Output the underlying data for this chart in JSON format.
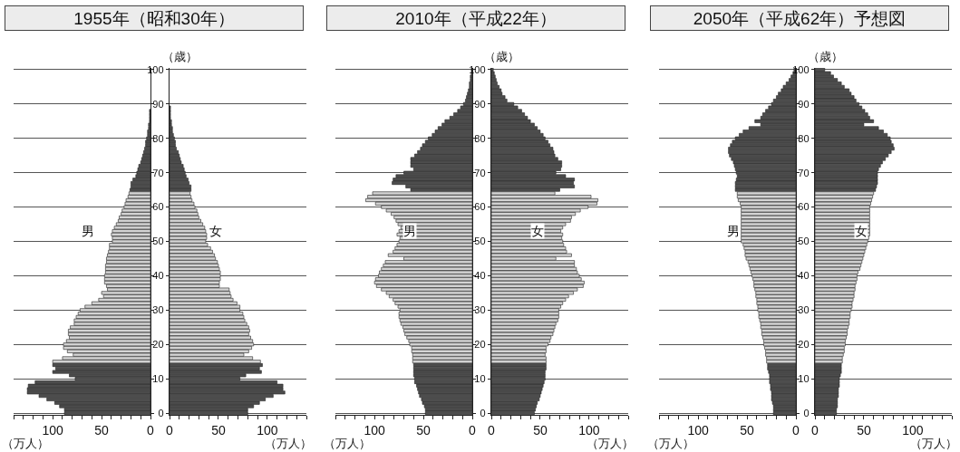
{
  "chart_data": [
    {
      "type": "bar",
      "orientation": "horizontal",
      "title": "1955年（昭和30年）",
      "xlabel": "（万人）",
      "tick_labels": "x",
      "grid": "y",
      "xlim": [
        140,
        0
      ],
      "xticks": [
        {
          "value": 140,
          "label": null
        },
        {
          "value": 130,
          "label": null
        },
        {
          "value": 120,
          "label": null
        },
        {
          "value": 110,
          "label": null
        },
        100,
        {
          "value": 90,
          "label": null
        },
        {
          "value": 80,
          "label": null
        },
        {
          "value": 70,
          "label": null
        },
        {
          "value": 60,
          "label": null
        },
        50,
        {
          "value": 40,
          "label": null
        },
        {
          "value": 30,
          "label": null
        },
        {
          "value": 20,
          "label": null
        },
        {
          "value": 10,
          "label": null
        },
        0
      ],
      "categories": [
        "100",
        null,
        null,
        null,
        null,
        null,
        null,
        null,
        null,
        null,
        "90",
        null,
        null,
        null,
        null,
        null,
        null,
        null,
        null,
        null,
        "80",
        null,
        null,
        null,
        null,
        null,
        null,
        null,
        null,
        null,
        "70",
        null,
        null,
        null,
        null,
        null,
        null,
        null,
        null,
        null,
        "60",
        null,
        null,
        null,
        null,
        null,
        null,
        null,
        null,
        null,
        "50",
        null,
        null,
        null,
        null,
        null,
        null,
        null,
        null,
        null,
        "40",
        null,
        null,
        null,
        null,
        null,
        null,
        null,
        null,
        null,
        "30",
        null,
        null,
        null,
        null,
        null,
        null,
        null,
        null,
        null,
        "20",
        null,
        null,
        null,
        null,
        null,
        null,
        null,
        null,
        null,
        "10",
        null,
        null,
        null,
        null,
        null,
        null,
        null,
        null,
        null,
        "0"
      ],
      "series": [
        {
          "name": "男",
          "values": [
            null,
            null,
            null,
            null,
            null,
            null,
            null,
            null,
            null,
            null,
            null,
            null,
            1,
            1,
            1,
            1,
            2,
            2,
            3,
            3,
            4,
            5,
            5,
            6,
            7,
            8,
            9,
            10,
            12,
            13,
            14,
            15,
            18,
            20,
            20,
            21,
            22,
            23,
            25,
            26,
            27,
            29,
            30,
            32,
            33,
            35,
            37,
            39,
            40,
            39,
            39,
            42,
            42,
            43,
            44,
            45,
            45,
            46,
            46,
            46,
            47,
            47,
            47,
            45,
            44,
            50,
            48,
            53,
            60,
            67,
            72,
            74,
            76,
            78,
            78,
            82,
            84,
            84,
            83,
            86,
            89,
            89,
            85,
            79,
            90,
            100,
            100,
            97,
            100,
            83,
            77,
            118,
            125,
            126,
            126,
            114,
            106,
            98,
            93,
            88,
            88
          ],
          "colors": [
            "#4d4d4d",
            "#4d4d4d",
            "#4d4d4d",
            "#4d4d4d",
            "#4d4d4d",
            "#4d4d4d",
            "#4d4d4d",
            "#4d4d4d",
            "#4d4d4d",
            "#4d4d4d",
            "#4d4d4d",
            "#4d4d4d",
            "#4d4d4d",
            "#4d4d4d",
            "#4d4d4d",
            "#4d4d4d",
            "#4d4d4d",
            "#4d4d4d",
            "#4d4d4d",
            "#4d4d4d",
            "#4d4d4d",
            "#4d4d4d",
            "#4d4d4d",
            "#4d4d4d",
            "#4d4d4d",
            "#4d4d4d",
            "#4d4d4d",
            "#4d4d4d",
            "#4d4d4d",
            "#4d4d4d",
            "#4d4d4d",
            "#4d4d4d",
            "#4d4d4d",
            "#4d4d4d",
            "#4d4d4d",
            "#4d4d4d",
            "#d4d4d4",
            "#d4d4d4",
            "#d4d4d4",
            "#d4d4d4",
            "#d4d4d4",
            "#d4d4d4",
            "#d4d4d4",
            "#d4d4d4",
            "#d4d4d4",
            "#d4d4d4",
            "#d4d4d4",
            "#d4d4d4",
            "#d4d4d4",
            "#d4d4d4",
            "#d4d4d4",
            "#d4d4d4",
            "#d4d4d4",
            "#d4d4d4",
            "#d4d4d4",
            "#d4d4d4",
            "#d4d4d4",
            "#d4d4d4",
            "#d4d4d4",
            "#d4d4d4",
            "#d4d4d4",
            "#d4d4d4",
            "#d4d4d4",
            "#d4d4d4",
            "#d4d4d4",
            "#d4d4d4",
            "#d4d4d4",
            "#d4d4d4",
            "#d4d4d4",
            "#d4d4d4",
            "#d4d4d4",
            "#d4d4d4",
            "#d4d4d4",
            "#d4d4d4",
            "#d4d4d4",
            "#d4d4d4",
            "#d4d4d4",
            "#d4d4d4",
            "#d4d4d4",
            "#d4d4d4",
            "#d4d4d4",
            "#d4d4d4",
            "#d4d4d4",
            "#d4d4d4",
            "#d4d4d4",
            "#d4d4d4",
            "#4d4d4d",
            "#4d4d4d",
            "#4d4d4d",
            "#4d4d4d",
            "#4d4d4d",
            "#4d4d4d",
            "#4d4d4d",
            "#4d4d4d",
            "#4d4d4d",
            "#4d4d4d",
            "#4d4d4d",
            "#4d4d4d",
            "#4d4d4d",
            "#4d4d4d",
            "#4d4d4d"
          ]
        }
      ]
    },
    {
      "type": "bar",
      "orientation": "horizontal",
      "xlabel": "（万人）",
      "ylabel": "（歳）",
      "grid": "y",
      "xlim": [
        0,
        140
      ],
      "xticks": [
        0,
        {
          "value": 10,
          "label": null
        },
        {
          "value": 20,
          "label": null
        },
        {
          "value": 30,
          "label": null
        },
        {
          "value": 40,
          "label": null
        },
        50,
        {
          "value": 60,
          "label": null
        },
        {
          "value": 70,
          "label": null
        },
        {
          "value": 80,
          "label": null
        },
        {
          "value": 90,
          "label": null
        },
        100,
        {
          "value": 110,
          "label": null
        },
        {
          "value": 120,
          "label": null
        },
        {
          "value": 130,
          "label": null
        },
        {
          "value": 140,
          "label": null
        }
      ],
      "categories": [
        "100",
        null,
        null,
        null,
        null,
        null,
        null,
        null,
        null,
        null,
        "90",
        null,
        null,
        null,
        null,
        null,
        null,
        null,
        null,
        null,
        "80",
        null,
        null,
        null,
        null,
        null,
        null,
        null,
        null,
        null,
        "70",
        null,
        null,
        null,
        null,
        null,
        null,
        null,
        null,
        null,
        "60",
        null,
        null,
        null,
        null,
        null,
        null,
        null,
        null,
        null,
        "50",
        null,
        null,
        null,
        null,
        null,
        null,
        null,
        null,
        null,
        "40",
        null,
        null,
        null,
        null,
        null,
        null,
        null,
        null,
        null,
        "30",
        null,
        null,
        null,
        null,
        null,
        null,
        null,
        null,
        null,
        "20",
        null,
        null,
        null,
        null,
        null,
        null,
        null,
        null,
        null,
        "10",
        null,
        null,
        null,
        null,
        null,
        null,
        null,
        null,
        null,
        "0"
      ],
      "series": [
        {
          "name": "女",
          "values": [
            null,
            null,
            null,
            null,
            null,
            null,
            null,
            null,
            null,
            null,
            null,
            1,
            1,
            1,
            1,
            2,
            2,
            3,
            3,
            4,
            5,
            6,
            6,
            7,
            9,
            10,
            11,
            12,
            14,
            15,
            16,
            17,
            19,
            20,
            22,
            22,
            21,
            22,
            23,
            25,
            26,
            28,
            29,
            30,
            32,
            34,
            36,
            37,
            38,
            38,
            37,
            39,
            42,
            44,
            46,
            47,
            49,
            50,
            51,
            52,
            52,
            52,
            51,
            51,
            61,
            62,
            63,
            65,
            69,
            72,
            72,
            75,
            76,
            77,
            79,
            81,
            82,
            81,
            83,
            85,
            86,
            84,
            81,
            76,
            85,
            93,
            95,
            92,
            94,
            78,
            72,
            110,
            116,
            116,
            118,
            106,
            98,
            92,
            86,
            80,
            80
          ],
          "colors": [
            "#4d4d4d",
            "#4d4d4d",
            "#4d4d4d",
            "#4d4d4d",
            "#4d4d4d",
            "#4d4d4d",
            "#4d4d4d",
            "#4d4d4d",
            "#4d4d4d",
            "#4d4d4d",
            "#4d4d4d",
            "#4d4d4d",
            "#4d4d4d",
            "#4d4d4d",
            "#4d4d4d",
            "#4d4d4d",
            "#4d4d4d",
            "#4d4d4d",
            "#4d4d4d",
            "#4d4d4d",
            "#4d4d4d",
            "#4d4d4d",
            "#4d4d4d",
            "#4d4d4d",
            "#4d4d4d",
            "#4d4d4d",
            "#4d4d4d",
            "#4d4d4d",
            "#4d4d4d",
            "#4d4d4d",
            "#4d4d4d",
            "#4d4d4d",
            "#4d4d4d",
            "#4d4d4d",
            "#4d4d4d",
            "#4d4d4d",
            "#d4d4d4",
            "#d4d4d4",
            "#d4d4d4",
            "#d4d4d4",
            "#d4d4d4",
            "#d4d4d4",
            "#d4d4d4",
            "#d4d4d4",
            "#d4d4d4",
            "#d4d4d4",
            "#d4d4d4",
            "#d4d4d4",
            "#d4d4d4",
            "#d4d4d4",
            "#d4d4d4",
            "#d4d4d4",
            "#d4d4d4",
            "#d4d4d4",
            "#d4d4d4",
            "#d4d4d4",
            "#d4d4d4",
            "#d4d4d4",
            "#d4d4d4",
            "#d4d4d4",
            "#d4d4d4",
            "#d4d4d4",
            "#d4d4d4",
            "#d4d4d4",
            "#d4d4d4",
            "#d4d4d4",
            "#d4d4d4",
            "#d4d4d4",
            "#d4d4d4",
            "#d4d4d4",
            "#d4d4d4",
            "#d4d4d4",
            "#d4d4d4",
            "#d4d4d4",
            "#d4d4d4",
            "#d4d4d4",
            "#d4d4d4",
            "#d4d4d4",
            "#d4d4d4",
            "#d4d4d4",
            "#d4d4d4",
            "#d4d4d4",
            "#d4d4d4",
            "#d4d4d4",
            "#d4d4d4",
            "#d4d4d4",
            "#4d4d4d",
            "#4d4d4d",
            "#4d4d4d",
            "#4d4d4d",
            "#4d4d4d",
            "#4d4d4d",
            "#4d4d4d",
            "#4d4d4d",
            "#4d4d4d",
            "#4d4d4d",
            "#4d4d4d",
            "#4d4d4d",
            "#4d4d4d",
            "#4d4d4d",
            "#4d4d4d"
          ]
        }
      ]
    },
    {
      "type": "bar",
      "orientation": "horizontal",
      "title": "2010年（平成22年）",
      "xlabel": "（万人）",
      "tick_labels": "x",
      "grid": "y",
      "xlim": [
        140,
        0
      ],
      "xticks": [
        {
          "value": 140,
          "label": null
        },
        {
          "value": 130,
          "label": null
        },
        {
          "value": 120,
          "label": null
        },
        {
          "value": 110,
          "label": null
        },
        100,
        {
          "value": 90,
          "label": null
        },
        {
          "value": 80,
          "label": null
        },
        {
          "value": 70,
          "label": null
        },
        {
          "value": 60,
          "label": null
        },
        50,
        {
          "value": 40,
          "label": null
        },
        {
          "value": 30,
          "label": null
        },
        {
          "value": 20,
          "label": null
        },
        {
          "value": 10,
          "label": null
        },
        0
      ],
      "categories": [
        "100",
        null,
        null,
        null,
        null,
        null,
        null,
        null,
        null,
        null,
        "90",
        null,
        null,
        null,
        null,
        null,
        null,
        null,
        null,
        null,
        "80",
        null,
        null,
        null,
        null,
        null,
        null,
        null,
        null,
        null,
        "70",
        null,
        null,
        null,
        null,
        null,
        null,
        null,
        null,
        null,
        "60",
        null,
        null,
        null,
        null,
        null,
        null,
        null,
        null,
        null,
        "50",
        null,
        null,
        null,
        null,
        null,
        null,
        null,
        null,
        null,
        "40",
        null,
        null,
        null,
        null,
        null,
        null,
        null,
        null,
        null,
        "30",
        null,
        null,
        null,
        null,
        null,
        null,
        null,
        null,
        null,
        "20",
        null,
        null,
        null,
        null,
        null,
        null,
        null,
        null,
        null,
        "10",
        null,
        null,
        null,
        null,
        null,
        null,
        null,
        null,
        null,
        "0"
      ],
      "series": [
        {
          "name": "男",
          "values": [
            1,
            1,
            2,
            2,
            3,
            3,
            4,
            5,
            6,
            7,
            9,
            12,
            15,
            19,
            23,
            28,
            31,
            35,
            38,
            41,
            45,
            48,
            51,
            53,
            56,
            59,
            63,
            63,
            63,
            60,
            70,
            78,
            81,
            82,
            68,
            63,
            102,
            107,
            109,
            99,
            93,
            88,
            83,
            80,
            78,
            76,
            73,
            75,
            77,
            74,
            75,
            77,
            79,
            81,
            86,
            70,
            89,
            91,
            93,
            95,
            96,
            99,
            100,
            98,
            93,
            88,
            85,
            81,
            79,
            76,
            74,
            75,
            75,
            74,
            73,
            71,
            70,
            69,
            67,
            65,
            64,
            62,
            62,
            61,
            61,
            61,
            60,
            60,
            60,
            60,
            59,
            59,
            57,
            56,
            55,
            54,
            52,
            51,
            49,
            48,
            48
          ],
          "colors": [
            "#4d4d4d",
            "#4d4d4d",
            "#4d4d4d",
            "#4d4d4d",
            "#4d4d4d",
            "#4d4d4d",
            "#4d4d4d",
            "#4d4d4d",
            "#4d4d4d",
            "#4d4d4d",
            "#4d4d4d",
            "#4d4d4d",
            "#4d4d4d",
            "#4d4d4d",
            "#4d4d4d",
            "#4d4d4d",
            "#4d4d4d",
            "#4d4d4d",
            "#4d4d4d",
            "#4d4d4d",
            "#4d4d4d",
            "#4d4d4d",
            "#4d4d4d",
            "#4d4d4d",
            "#4d4d4d",
            "#4d4d4d",
            "#4d4d4d",
            "#4d4d4d",
            "#4d4d4d",
            "#4d4d4d",
            "#4d4d4d",
            "#4d4d4d",
            "#4d4d4d",
            "#4d4d4d",
            "#4d4d4d",
            "#4d4d4d",
            "#d4d4d4",
            "#d4d4d4",
            "#d4d4d4",
            "#d4d4d4",
            "#d4d4d4",
            "#d4d4d4",
            "#d4d4d4",
            "#d4d4d4",
            "#d4d4d4",
            "#d4d4d4",
            "#d4d4d4",
            "#d4d4d4",
            "#d4d4d4",
            "#d4d4d4",
            "#d4d4d4",
            "#d4d4d4",
            "#d4d4d4",
            "#d4d4d4",
            "#d4d4d4",
            "#d4d4d4",
            "#d4d4d4",
            "#d4d4d4",
            "#d4d4d4",
            "#d4d4d4",
            "#d4d4d4",
            "#d4d4d4",
            "#d4d4d4",
            "#d4d4d4",
            "#d4d4d4",
            "#d4d4d4",
            "#d4d4d4",
            "#d4d4d4",
            "#d4d4d4",
            "#d4d4d4",
            "#d4d4d4",
            "#d4d4d4",
            "#d4d4d4",
            "#d4d4d4",
            "#d4d4d4",
            "#d4d4d4",
            "#d4d4d4",
            "#d4d4d4",
            "#d4d4d4",
            "#d4d4d4",
            "#d4d4d4",
            "#d4d4d4",
            "#d4d4d4",
            "#d4d4d4",
            "#d4d4d4",
            "#d4d4d4",
            "#4d4d4d",
            "#4d4d4d",
            "#4d4d4d",
            "#4d4d4d",
            "#4d4d4d",
            "#4d4d4d",
            "#4d4d4d",
            "#4d4d4d",
            "#4d4d4d",
            "#4d4d4d",
            "#4d4d4d",
            "#4d4d4d",
            "#4d4d4d",
            "#4d4d4d",
            "#4d4d4d"
          ]
        }
      ]
    },
    {
      "type": "bar",
      "orientation": "horizontal",
      "xlabel": "（万人）",
      "ylabel": "（歳）",
      "grid": "y",
      "xlim": [
        0,
        140
      ],
      "xticks": [
        0,
        {
          "value": 10,
          "label": null
        },
        {
          "value": 20,
          "label": null
        },
        {
          "value": 30,
          "label": null
        },
        {
          "value": 40,
          "label": null
        },
        50,
        {
          "value": 60,
          "label": null
        },
        {
          "value": 70,
          "label": null
        },
        {
          "value": 80,
          "label": null
        },
        {
          "value": 90,
          "label": null
        },
        100,
        {
          "value": 110,
          "label": null
        },
        {
          "value": 120,
          "label": null
        },
        {
          "value": 130,
          "label": null
        },
        {
          "value": 140,
          "label": null
        }
      ],
      "categories": [
        "100",
        null,
        null,
        null,
        null,
        null,
        null,
        null,
        null,
        null,
        "90",
        null,
        null,
        null,
        null,
        null,
        null,
        null,
        null,
        null,
        "80",
        null,
        null,
        null,
        null,
        null,
        null,
        null,
        null,
        null,
        "70",
        null,
        null,
        null,
        null,
        null,
        null,
        null,
        null,
        null,
        "60",
        null,
        null,
        null,
        null,
        null,
        null,
        null,
        null,
        null,
        "50",
        null,
        null,
        null,
        null,
        null,
        null,
        null,
        null,
        null,
        "40",
        null,
        null,
        null,
        null,
        null,
        null,
        null,
        null,
        null,
        "30",
        null,
        null,
        null,
        null,
        null,
        null,
        null,
        null,
        null,
        "20",
        null,
        null,
        null,
        null,
        null,
        null,
        null,
        null,
        null,
        "10",
        null,
        null,
        null,
        null,
        null,
        null,
        null,
        null,
        null,
        "0"
      ],
      "series": [
        {
          "name": "女",
          "values": [
            2,
            3,
            4,
            5,
            6,
            8,
            10,
            11,
            14,
            16,
            23,
            27,
            31,
            34,
            37,
            40,
            44,
            47,
            50,
            53,
            55,
            58,
            60,
            63,
            64,
            65,
            68,
            72,
            72,
            71,
            66,
            76,
            85,
            84,
            85,
            70,
            65,
            102,
            109,
            108,
            99,
            91,
            86,
            82,
            81,
            76,
            73,
            71,
            73,
            72,
            73,
            74,
            76,
            77,
            82,
            66,
            85,
            85,
            87,
            88,
            90,
            92,
            95,
            94,
            88,
            84,
            79,
            76,
            73,
            71,
            69,
            69,
            69,
            68,
            66,
            65,
            64,
            63,
            61,
            60,
            58,
            56,
            56,
            55,
            56,
            56,
            56,
            56,
            55,
            55,
            55,
            54,
            53,
            52,
            51,
            50,
            49,
            47,
            46,
            45,
            44
          ],
          "colors": [
            "#4d4d4d",
            "#4d4d4d",
            "#4d4d4d",
            "#4d4d4d",
            "#4d4d4d",
            "#4d4d4d",
            "#4d4d4d",
            "#4d4d4d",
            "#4d4d4d",
            "#4d4d4d",
            "#4d4d4d",
            "#4d4d4d",
            "#4d4d4d",
            "#4d4d4d",
            "#4d4d4d",
            "#4d4d4d",
            "#4d4d4d",
            "#4d4d4d",
            "#4d4d4d",
            "#4d4d4d",
            "#4d4d4d",
            "#4d4d4d",
            "#4d4d4d",
            "#4d4d4d",
            "#4d4d4d",
            "#4d4d4d",
            "#4d4d4d",
            "#4d4d4d",
            "#4d4d4d",
            "#4d4d4d",
            "#4d4d4d",
            "#4d4d4d",
            "#4d4d4d",
            "#4d4d4d",
            "#4d4d4d",
            "#4d4d4d",
            "#d4d4d4",
            "#d4d4d4",
            "#d4d4d4",
            "#d4d4d4",
            "#d4d4d4",
            "#d4d4d4",
            "#d4d4d4",
            "#d4d4d4",
            "#d4d4d4",
            "#d4d4d4",
            "#d4d4d4",
            "#d4d4d4",
            "#d4d4d4",
            "#d4d4d4",
            "#d4d4d4",
            "#d4d4d4",
            "#d4d4d4",
            "#d4d4d4",
            "#d4d4d4",
            "#d4d4d4",
            "#d4d4d4",
            "#d4d4d4",
            "#d4d4d4",
            "#d4d4d4",
            "#d4d4d4",
            "#d4d4d4",
            "#d4d4d4",
            "#d4d4d4",
            "#d4d4d4",
            "#d4d4d4",
            "#d4d4d4",
            "#d4d4d4",
            "#d4d4d4",
            "#d4d4d4",
            "#d4d4d4",
            "#d4d4d4",
            "#d4d4d4",
            "#d4d4d4",
            "#d4d4d4",
            "#d4d4d4",
            "#d4d4d4",
            "#d4d4d4",
            "#d4d4d4",
            "#d4d4d4",
            "#d4d4d4",
            "#d4d4d4",
            "#d4d4d4",
            "#d4d4d4",
            "#d4d4d4",
            "#d4d4d4",
            "#4d4d4d",
            "#4d4d4d",
            "#4d4d4d",
            "#4d4d4d",
            "#4d4d4d",
            "#4d4d4d",
            "#4d4d4d",
            "#4d4d4d",
            "#4d4d4d",
            "#4d4d4d",
            "#4d4d4d",
            "#4d4d4d",
            "#4d4d4d",
            "#4d4d4d",
            "#4d4d4d"
          ]
        }
      ]
    },
    {
      "type": "bar",
      "orientation": "horizontal",
      "title": "2050年（平成62年）予想図",
      "xlabel": "（万人）",
      "tick_labels": "x",
      "grid": "y",
      "xlim": [
        140,
        0
      ],
      "xticks": [
        {
          "value": 140,
          "label": null
        },
        {
          "value": 130,
          "label": null
        },
        {
          "value": 120,
          "label": null
        },
        {
          "value": 110,
          "label": null
        },
        100,
        {
          "value": 90,
          "label": null
        },
        {
          "value": 80,
          "label": null
        },
        {
          "value": 70,
          "label": null
        },
        {
          "value": 60,
          "label": null
        },
        50,
        {
          "value": 40,
          "label": null
        },
        {
          "value": 30,
          "label": null
        },
        {
          "value": 20,
          "label": null
        },
        {
          "value": 10,
          "label": null
        },
        0
      ],
      "categories": [
        "100",
        null,
        null,
        null,
        null,
        null,
        null,
        null,
        null,
        null,
        "90",
        null,
        null,
        null,
        null,
        null,
        null,
        null,
        null,
        null,
        "80",
        null,
        null,
        null,
        null,
        null,
        null,
        null,
        null,
        null,
        "70",
        null,
        null,
        null,
        null,
        null,
        null,
        null,
        null,
        null,
        "60",
        null,
        null,
        null,
        null,
        null,
        null,
        null,
        null,
        null,
        "50",
        null,
        null,
        null,
        null,
        null,
        null,
        null,
        null,
        null,
        "40",
        null,
        null,
        null,
        null,
        null,
        null,
        null,
        null,
        null,
        "30",
        null,
        null,
        null,
        null,
        null,
        null,
        null,
        null,
        null,
        "20",
        null,
        null,
        null,
        null,
        null,
        null,
        null,
        null,
        null,
        "10",
        null,
        null,
        null,
        null,
        null,
        null,
        null,
        null,
        null,
        "0"
      ],
      "series": [
        {
          "name": "男",
          "values": [
            2,
            3,
            5,
            7,
            10,
            13,
            15,
            18,
            20,
            23,
            25,
            28,
            31,
            34,
            36,
            42,
            36,
            48,
            54,
            58,
            62,
            65,
            67,
            69,
            69,
            68,
            66,
            64,
            63,
            62,
            61,
            60,
            61,
            62,
            62,
            62,
            60,
            60,
            59,
            57,
            56,
            56,
            56,
            56,
            56,
            56,
            56,
            56,
            56,
            56,
            56,
            54,
            53,
            52,
            52,
            51,
            49,
            48,
            47,
            46,
            45,
            44,
            43,
            43,
            42,
            41,
            41,
            40,
            40,
            39,
            39,
            38,
            38,
            37,
            36,
            36,
            35,
            35,
            34,
            33,
            33,
            32,
            31,
            31,
            30,
            30,
            29,
            29,
            28,
            27,
            27,
            27,
            26,
            26,
            25,
            25,
            25,
            24,
            23,
            23,
            23
          ],
          "colors": [
            "#4d4d4d",
            "#4d4d4d",
            "#4d4d4d",
            "#4d4d4d",
            "#4d4d4d",
            "#4d4d4d",
            "#4d4d4d",
            "#4d4d4d",
            "#4d4d4d",
            "#4d4d4d",
            "#4d4d4d",
            "#4d4d4d",
            "#4d4d4d",
            "#4d4d4d",
            "#4d4d4d",
            "#4d4d4d",
            "#4d4d4d",
            "#4d4d4d",
            "#4d4d4d",
            "#4d4d4d",
            "#4d4d4d",
            "#4d4d4d",
            "#4d4d4d",
            "#4d4d4d",
            "#4d4d4d",
            "#4d4d4d",
            "#4d4d4d",
            "#4d4d4d",
            "#4d4d4d",
            "#4d4d4d",
            "#4d4d4d",
            "#4d4d4d",
            "#4d4d4d",
            "#4d4d4d",
            "#4d4d4d",
            "#4d4d4d",
            "#d4d4d4",
            "#d4d4d4",
            "#d4d4d4",
            "#d4d4d4",
            "#d4d4d4",
            "#d4d4d4",
            "#d4d4d4",
            "#d4d4d4",
            "#d4d4d4",
            "#d4d4d4",
            "#d4d4d4",
            "#d4d4d4",
            "#d4d4d4",
            "#d4d4d4",
            "#d4d4d4",
            "#d4d4d4",
            "#d4d4d4",
            "#d4d4d4",
            "#d4d4d4",
            "#d4d4d4",
            "#d4d4d4",
            "#d4d4d4",
            "#d4d4d4",
            "#d4d4d4",
            "#d4d4d4",
            "#d4d4d4",
            "#d4d4d4",
            "#d4d4d4",
            "#d4d4d4",
            "#d4d4d4",
            "#d4d4d4",
            "#d4d4d4",
            "#d4d4d4",
            "#d4d4d4",
            "#d4d4d4",
            "#d4d4d4",
            "#d4d4d4",
            "#d4d4d4",
            "#d4d4d4",
            "#d4d4d4",
            "#d4d4d4",
            "#d4d4d4",
            "#d4d4d4",
            "#d4d4d4",
            "#d4d4d4",
            "#d4d4d4",
            "#d4d4d4",
            "#d4d4d4",
            "#d4d4d4",
            "#d4d4d4",
            "#4d4d4d",
            "#4d4d4d",
            "#4d4d4d",
            "#4d4d4d",
            "#4d4d4d",
            "#4d4d4d",
            "#4d4d4d",
            "#4d4d4d",
            "#4d4d4d",
            "#4d4d4d",
            "#4d4d4d",
            "#4d4d4d",
            "#4d4d4d",
            "#4d4d4d",
            "#4d4d4d"
          ]
        }
      ]
    },
    {
      "type": "bar",
      "orientation": "horizontal",
      "xlabel": "（万人）",
      "ylabel": "（歳）",
      "grid": "y",
      "xlim": [
        0,
        140
      ],
      "xticks": [
        0,
        {
          "value": 10,
          "label": null
        },
        {
          "value": 20,
          "label": null
        },
        {
          "value": 30,
          "label": null
        },
        {
          "value": 40,
          "label": null
        },
        50,
        {
          "value": 60,
          "label": null
        },
        {
          "value": 70,
          "label": null
        },
        {
          "value": 80,
          "label": null
        },
        {
          "value": 90,
          "label": null
        },
        100,
        {
          "value": 110,
          "label": null
        },
        {
          "value": 120,
          "label": null
        },
        {
          "value": 130,
          "label": null
        },
        {
          "value": 140,
          "label": null
        }
      ],
      "categories": [
        "100",
        null,
        null,
        null,
        null,
        null,
        null,
        null,
        null,
        null,
        "90",
        null,
        null,
        null,
        null,
        null,
        null,
        null,
        null,
        null,
        "80",
        null,
        null,
        null,
        null,
        null,
        null,
        null,
        null,
        null,
        "70",
        null,
        null,
        null,
        null,
        null,
        null,
        null,
        null,
        null,
        "60",
        null,
        null,
        null,
        null,
        null,
        null,
        null,
        null,
        null,
        "50",
        null,
        null,
        null,
        null,
        null,
        null,
        null,
        null,
        null,
        "40",
        null,
        null,
        null,
        null,
        null,
        null,
        null,
        null,
        null,
        "30",
        null,
        null,
        null,
        null,
        null,
        null,
        null,
        null,
        null,
        "20",
        null,
        null,
        null,
        null,
        null,
        null,
        null,
        null,
        null,
        "10",
        null,
        null,
        null,
        null,
        null,
        null,
        null,
        null,
        null,
        "0"
      ],
      "series": [
        {
          "name": "女",
          "values": [
            10,
            16,
            19,
            23,
            27,
            30,
            35,
            37,
            40,
            42,
            45,
            48,
            51,
            54,
            56,
            60,
            50,
            65,
            70,
            74,
            77,
            78,
            80,
            81,
            78,
            75,
            72,
            69,
            67,
            65,
            64,
            64,
            64,
            64,
            63,
            62,
            60,
            59,
            58,
            57,
            56,
            56,
            56,
            56,
            56,
            56,
            56,
            56,
            56,
            55,
            54,
            53,
            52,
            51,
            50,
            49,
            48,
            47,
            46,
            44,
            43,
            43,
            42,
            41,
            41,
            40,
            40,
            39,
            38,
            38,
            37,
            36,
            36,
            35,
            35,
            34,
            33,
            33,
            32,
            31,
            31,
            30,
            30,
            29,
            28,
            28,
            27,
            27,
            27,
            26,
            25,
            25,
            25,
            24,
            24,
            24,
            23,
            23,
            23,
            22,
            22
          ],
          "colors": [
            "#4d4d4d",
            "#4d4d4d",
            "#4d4d4d",
            "#4d4d4d",
            "#4d4d4d",
            "#4d4d4d",
            "#4d4d4d",
            "#4d4d4d",
            "#4d4d4d",
            "#4d4d4d",
            "#4d4d4d",
            "#4d4d4d",
            "#4d4d4d",
            "#4d4d4d",
            "#4d4d4d",
            "#4d4d4d",
            "#4d4d4d",
            "#4d4d4d",
            "#4d4d4d",
            "#4d4d4d",
            "#4d4d4d",
            "#4d4d4d",
            "#4d4d4d",
            "#4d4d4d",
            "#4d4d4d",
            "#4d4d4d",
            "#4d4d4d",
            "#4d4d4d",
            "#4d4d4d",
            "#4d4d4d",
            "#4d4d4d",
            "#4d4d4d",
            "#4d4d4d",
            "#4d4d4d",
            "#4d4d4d",
            "#4d4d4d",
            "#d4d4d4",
            "#d4d4d4",
            "#d4d4d4",
            "#d4d4d4",
            "#d4d4d4",
            "#d4d4d4",
            "#d4d4d4",
            "#d4d4d4",
            "#d4d4d4",
            "#d4d4d4",
            "#d4d4d4",
            "#d4d4d4",
            "#d4d4d4",
            "#d4d4d4",
            "#d4d4d4",
            "#d4d4d4",
            "#d4d4d4",
            "#d4d4d4",
            "#d4d4d4",
            "#d4d4d4",
            "#d4d4d4",
            "#d4d4d4",
            "#d4d4d4",
            "#d4d4d4",
            "#d4d4d4",
            "#d4d4d4",
            "#d4d4d4",
            "#d4d4d4",
            "#d4d4d4",
            "#d4d4d4",
            "#d4d4d4",
            "#d4d4d4",
            "#d4d4d4",
            "#d4d4d4",
            "#d4d4d4",
            "#d4d4d4",
            "#d4d4d4",
            "#d4d4d4",
            "#d4d4d4",
            "#d4d4d4",
            "#d4d4d4",
            "#d4d4d4",
            "#d4d4d4",
            "#d4d4d4",
            "#d4d4d4",
            "#d4d4d4",
            "#d4d4d4",
            "#d4d4d4",
            "#d4d4d4",
            "#d4d4d4",
            "#4d4d4d",
            "#4d4d4d",
            "#4d4d4d",
            "#4d4d4d",
            "#4d4d4d",
            "#4d4d4d",
            "#4d4d4d",
            "#4d4d4d",
            "#4d4d4d",
            "#4d4d4d",
            "#4d4d4d",
            "#4d4d4d",
            "#4d4d4d",
            "#4d4d4d",
            "#4d4d4d"
          ]
        }
      ]
    }
  ]
}
